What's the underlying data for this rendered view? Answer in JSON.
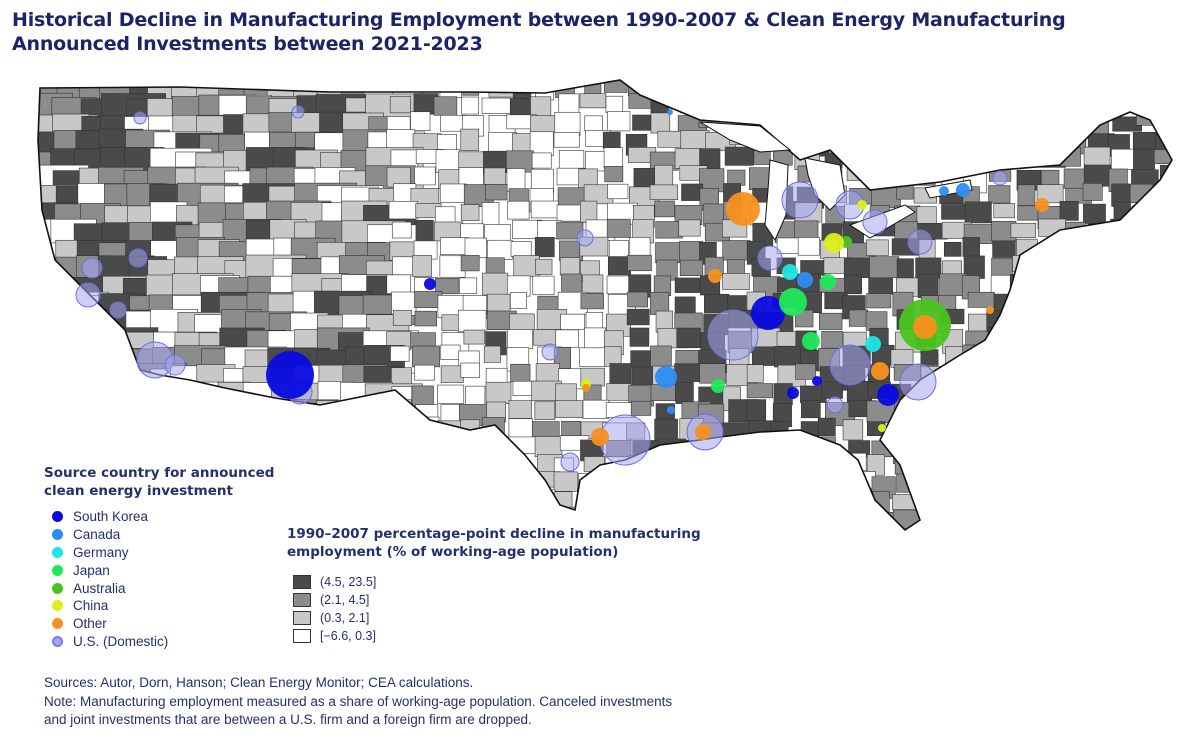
{
  "title": {
    "line1": "Historical Decline in Manufacturing Employment between 1990-2007 & Clean Energy Manufacturing",
    "line2": "Announced Investments between 2021-2023"
  },
  "legend_country": {
    "heading_line1": "Source country for announced",
    "heading_line2": "clean energy investment",
    "items": [
      {
        "label": "South Korea",
        "color": "#0a0ae0"
      },
      {
        "label": "Canada",
        "color": "#2c8ef5"
      },
      {
        "label": "Germany",
        "color": "#1fe6e6"
      },
      {
        "label": "Japan",
        "color": "#1fe85a"
      },
      {
        "label": "Australia",
        "color": "#4ac41e"
      },
      {
        "label": "China",
        "color": "#dcef1a"
      },
      {
        "label": "Other",
        "color": "#f7901e"
      },
      {
        "label": "U.S. (Domestic)",
        "color": "#a6a6f2"
      }
    ]
  },
  "legend_decline": {
    "heading_line1": "1990–2007 percentage-point decline in manufacturing",
    "heading_line2": "employment (% of working-age population)",
    "bins": [
      {
        "label": "(4.5, 23.5]",
        "color": "#4a4a4a"
      },
      {
        "label": "(2.1, 4.5]",
        "color": "#8c8c8c"
      },
      {
        "label": "(0.3, 2.1]",
        "color": "#c8c8c8"
      },
      {
        "label": "[−6.6, 0.3]",
        "color": "#ffffff"
      }
    ]
  },
  "footer": {
    "sources": "Sources: Autor, Dorn, Hanson; Clean Energy Monitor; CEA calculations.",
    "note_line1": "Note: Manufacturing employment measured as a share of working-age population. Canceled investments",
    "note_line2": "and joint investments that are between a U.S. firm and a foreign firm are dropped."
  }
}
